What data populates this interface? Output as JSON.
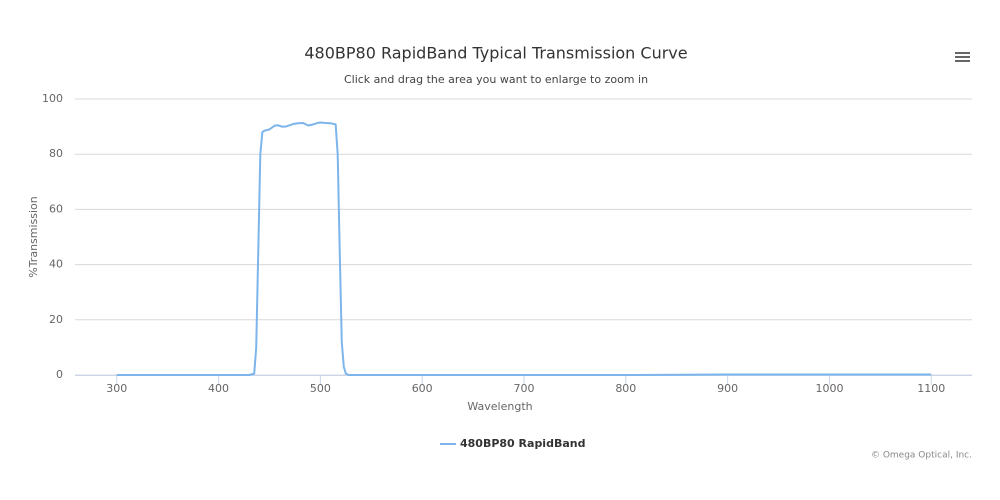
{
  "chart_data": {
    "type": "line",
    "title": "480BP80 RapidBand Typical Transmission Curve",
    "subtitle": "Click and drag the area you want to enlarge to zoom in",
    "x_label": "Wavelength",
    "y_label": "%Transmission",
    "credits": "© Omega Optical, Inc.",
    "x": [
      300,
      400,
      430,
      435,
      437,
      439,
      441,
      443,
      445,
      450,
      455,
      458,
      462,
      466,
      470,
      474,
      478,
      483,
      488,
      493,
      497,
      500,
      505,
      510,
      515,
      517,
      519,
      521,
      523,
      525,
      528,
      600,
      700,
      800,
      900,
      1000,
      1100
    ],
    "series": [
      {
        "name": "480BP80 RapidBand",
        "color": "#7cb5ec",
        "values": [
          0,
          0,
          0,
          0.5,
          10,
          45,
          80,
          88,
          88.5,
          89,
          90.3,
          90.5,
          90,
          90,
          90.5,
          91,
          91.2,
          91.3,
          90.4,
          90.8,
          91.3,
          91.5,
          91.3,
          91.2,
          90.8,
          80,
          45,
          12,
          3,
          0.5,
          0,
          0,
          0,
          0,
          0.2,
          0.2,
          0.2
        ]
      }
    ],
    "xlim": [
      259,
      1140
    ],
    "ylim": [
      0,
      100
    ],
    "xticks": [
      300,
      400,
      500,
      600,
      700,
      800,
      900,
      1000,
      1100
    ],
    "yticks": [
      0,
      20,
      40,
      60,
      80,
      100
    ],
    "grid": true,
    "legend": "bottom"
  }
}
